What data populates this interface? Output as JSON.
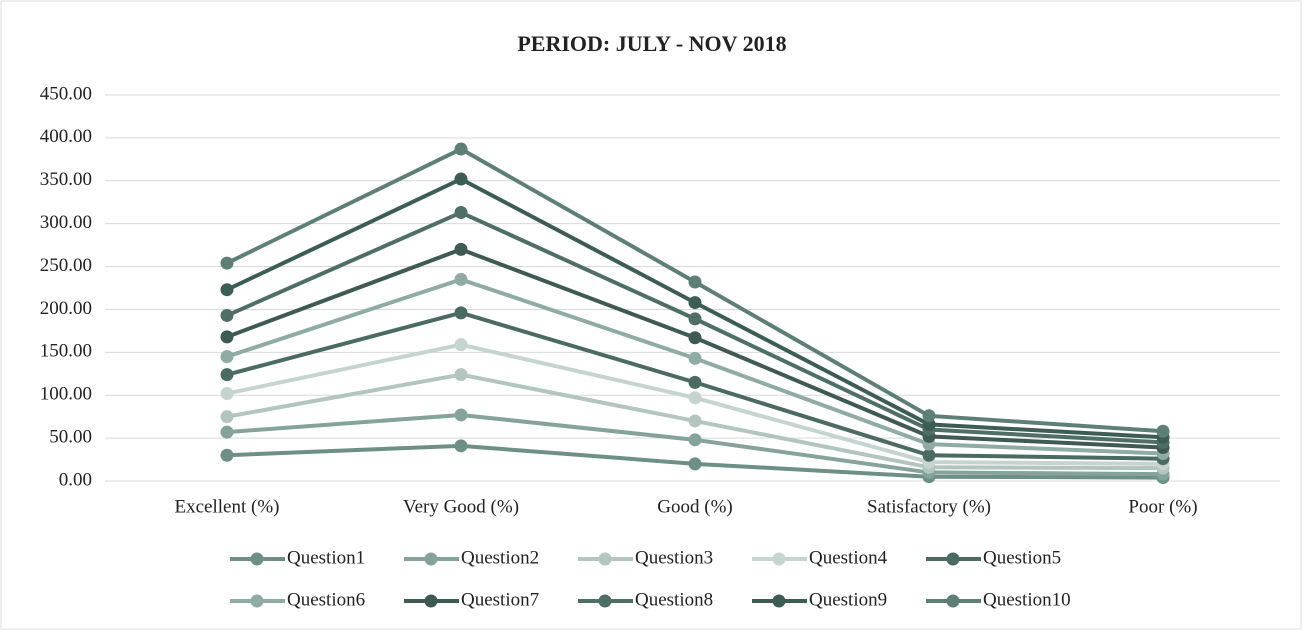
{
  "chart_data": {
    "type": "line",
    "stacked": true,
    "title": "PERIOD: JULY - NOV 2018",
    "categories": [
      "Excellent (%)",
      "Very Good (%)",
      "Good (%)",
      "Satisfactory (%)",
      "Poor (%)"
    ],
    "series": [
      {
        "name": "Question1",
        "color": "#6e8f86",
        "values": [
          30,
          41,
          20,
          5,
          4
        ]
      },
      {
        "name": "Question2",
        "color": "#86a39b",
        "values": [
          27,
          36,
          28,
          5,
          4
        ]
      },
      {
        "name": "Question3",
        "color": "#b3c5bf",
        "values": [
          18,
          47,
          22,
          6,
          7
        ]
      },
      {
        "name": "Question4",
        "color": "#c6d4cf",
        "values": [
          27,
          35,
          27,
          6,
          5
        ]
      },
      {
        "name": "Question5",
        "color": "#4b6b62",
        "values": [
          22,
          37,
          18,
          8,
          6
        ]
      },
      {
        "name": "Question6",
        "color": "#8faba3",
        "values": [
          21,
          39,
          28,
          13,
          6
        ]
      },
      {
        "name": "Question7",
        "color": "#3f5a52",
        "values": [
          23,
          35,
          24,
          9,
          7
        ]
      },
      {
        "name": "Question8",
        "color": "#4f6e65",
        "values": [
          25,
          43,
          22,
          8,
          6
        ]
      },
      {
        "name": "Question9",
        "color": "#3d5c53",
        "values": [
          30,
          39,
          19,
          6,
          6
        ]
      },
      {
        "name": "Question10",
        "color": "#5e7f76",
        "values": [
          31,
          35,
          24,
          10,
          7
        ]
      }
    ],
    "ylim": [
      0,
      450
    ],
    "yticks": [
      {
        "value": 0,
        "label": "0.00"
      },
      {
        "value": 50,
        "label": "50.00"
      },
      {
        "value": 100,
        "label": "100.00"
      },
      {
        "value": 150,
        "label": "150.00"
      },
      {
        "value": 200,
        "label": "200.00"
      },
      {
        "value": 250,
        "label": "250.00"
      },
      {
        "value": 300,
        "label": "300.00"
      },
      {
        "value": 350,
        "label": "350.00"
      },
      {
        "value": 400,
        "label": "400.00"
      },
      {
        "value": 450,
        "label": "450.00"
      }
    ],
    "grid": true,
    "legend": "bottom"
  }
}
